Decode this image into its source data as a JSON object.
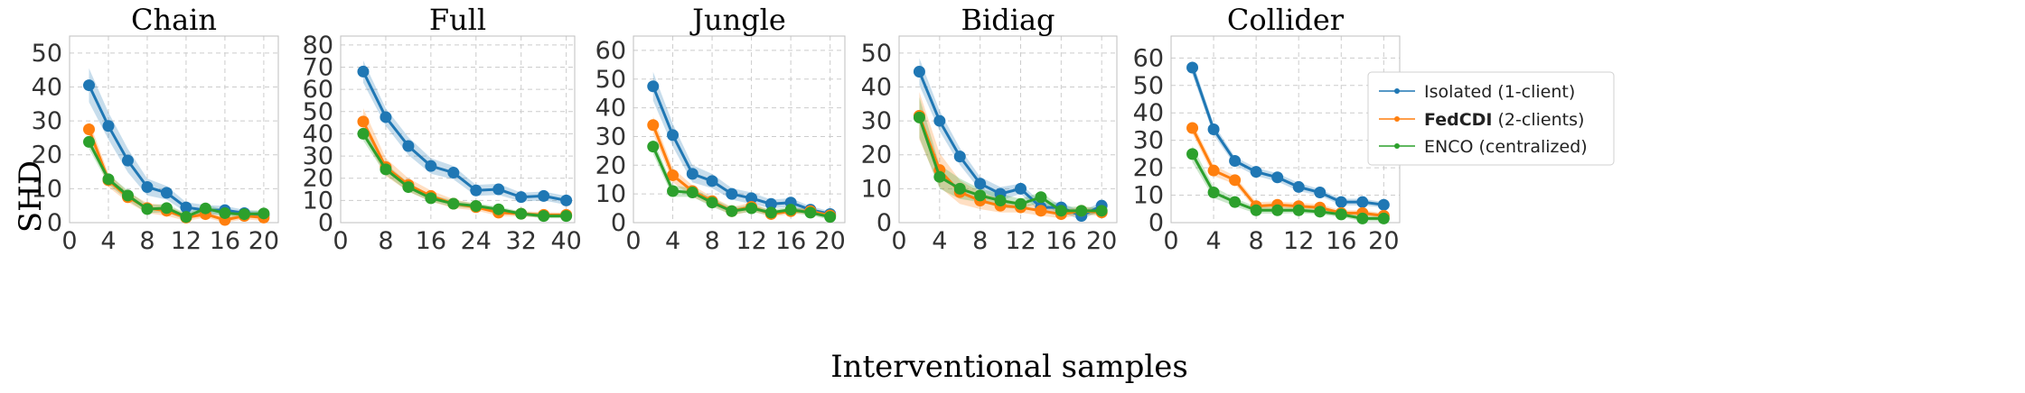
{
  "chart_data": {
    "type": "line",
    "shared_xlabel": "Interventional samples",
    "shared_ylabel": "SHD",
    "legend": {
      "placement": "top-right of Bidiag panel",
      "entries": [
        {
          "bold": "",
          "text": "Isolated (1-client)"
        },
        {
          "bold": "FedCDI",
          "text": " (2-clients)"
        },
        {
          "bold": "",
          "text": "ENCO (centralized)"
        }
      ]
    },
    "colors": {
      "isolated": "#1f77b4",
      "fedcdi": "#ff7f0e",
      "enco": "#2ca02c",
      "grid": "#cccccc",
      "spine": "#bfbfbf"
    },
    "panels": [
      {
        "title": "Chain",
        "xlim": [
          0,
          21.5
        ],
        "ylim": [
          0,
          55
        ],
        "xticks": [
          0,
          4,
          8,
          12,
          16,
          20
        ],
        "yticks": [
          0,
          10,
          20,
          30,
          40,
          50
        ],
        "x": [
          2,
          4,
          6,
          8,
          10,
          12,
          14,
          16,
          18,
          20
        ],
        "series": [
          {
            "key": "isolated",
            "name": "Isolated (1-client)",
            "values": [
              40.5,
              28.5,
              18.3,
              10.5,
              8.8,
              4.5,
              3.7,
              3.7,
              2.8,
              2.3
            ],
            "band": [
              5,
              4,
              3.5,
              2.5,
              2,
              1.5,
              1.5,
              1.2,
              1,
              1
            ]
          },
          {
            "key": "fedcdi",
            "name": "FedCDI (2-clients)",
            "values": [
              27.5,
              12.5,
              7.5,
              4.3,
              3.5,
              1.5,
              2.5,
              0.8,
              2.0,
              1.5
            ],
            "band": [
              2.5,
              2,
              1.5,
              1.5,
              1.5,
              1,
              1,
              0.8,
              1,
              1
            ]
          },
          {
            "key": "enco",
            "name": "ENCO (centralized)",
            "values": [
              23.8,
              12.8,
              8.0,
              4.0,
              4.3,
              1.7,
              4.2,
              2.8,
              2.5,
              2.7
            ],
            "band": [
              2,
              1.5,
              1.5,
              1.2,
              1.2,
              1,
              1,
              1,
              1,
              1
            ]
          }
        ]
      },
      {
        "title": "Full",
        "xlim": [
          0,
          41.5
        ],
        "ylim": [
          0,
          84
        ],
        "xticks": [
          0,
          8,
          16,
          24,
          32,
          40
        ],
        "yticks": [
          0,
          10,
          20,
          30,
          40,
          50,
          60,
          70,
          80
        ],
        "x": [
          4,
          8,
          12,
          16,
          20,
          24,
          28,
          32,
          36,
          40
        ],
        "series": [
          {
            "key": "isolated",
            "name": "Isolated (1-client)",
            "values": [
              68,
              47.5,
              34.5,
              25.5,
              22.5,
              14.5,
              15,
              11.5,
              12,
              10
            ],
            "band": [
              5,
              4,
              4,
              3.5,
              3,
              2.5,
              2.5,
              2,
              2,
              2
            ]
          },
          {
            "key": "fedcdi",
            "name": "FedCDI (2-clients)",
            "values": [
              45.5,
              25,
              17,
              12,
              8.5,
              7,
              4.5,
              4,
              3.5,
              3.5
            ],
            "band": [
              6,
              4,
              3,
              2.5,
              2,
              1.5,
              1.5,
              1.2,
              1.2,
              1
            ]
          },
          {
            "key": "enco",
            "name": "ENCO (centralized)",
            "values": [
              40,
              24,
              16,
              11,
              8.5,
              7.5,
              6,
              4,
              3,
              3
            ],
            "band": [
              3,
              2.5,
              2,
              1.5,
              1.5,
              1.2,
              1.2,
              1,
              1,
              1
            ]
          }
        ]
      },
      {
        "title": "Jungle",
        "xlim": [
          0,
          21.5
        ],
        "ylim": [
          0,
          65
        ],
        "xticks": [
          0,
          4,
          8,
          12,
          16,
          20
        ],
        "yticks": [
          0,
          10,
          20,
          30,
          40,
          50,
          60
        ],
        "x": [
          2,
          4,
          6,
          8,
          10,
          12,
          14,
          16,
          18,
          20
        ],
        "series": [
          {
            "key": "isolated",
            "name": "Isolated (1-client)",
            "values": [
              47.5,
              30.5,
              17,
              14.5,
              10,
              8.5,
              6.5,
              7,
              4.5,
              3
            ],
            "band": [
              5,
              4,
              3,
              2.5,
              2,
              2,
              1.5,
              1.5,
              1.2,
              1
            ]
          },
          {
            "key": "fedcdi",
            "name": "FedCDI (2-clients)",
            "values": [
              34,
              16.5,
              11,
              7.5,
              4,
              5.5,
              3,
              4,
              4,
              2.5
            ],
            "band": [
              3,
              2.5,
              2,
              1.5,
              1.5,
              1.5,
              1,
              1,
              1,
              1
            ]
          },
          {
            "key": "enco",
            "name": "ENCO (centralized)",
            "values": [
              26.5,
              11,
              10.5,
              7,
              4,
              5,
              3.5,
              4.5,
              3.5,
              2
            ],
            "band": [
              2.5,
              2,
              1.5,
              1.5,
              1.2,
              1.2,
              1,
              1,
              1,
              1
            ]
          }
        ]
      },
      {
        "title": "Bidiag",
        "xlim": [
          0,
          21.5
        ],
        "ylim": [
          0,
          55
        ],
        "xticks": [
          0,
          4,
          8,
          12,
          16,
          20
        ],
        "yticks": [
          0,
          10,
          20,
          30,
          40,
          50
        ],
        "x": [
          2,
          4,
          6,
          8,
          10,
          12,
          14,
          16,
          18,
          20
        ],
        "series": [
          {
            "key": "isolated",
            "name": "Isolated (1-client)",
            "values": [
              44.5,
              30,
              19.5,
              11.5,
              8.5,
              10,
              4.5,
              4.5,
              2,
              5
            ],
            "band": [
              4,
              3,
              2.5,
              2,
              2,
              1.5,
              1.5,
              1.5,
              1.2,
              1.2
            ]
          },
          {
            "key": "fedcdi",
            "name": "FedCDI (2-clients)",
            "values": [
              31.5,
              15.5,
              9,
              6.5,
              5,
              4.5,
              3.5,
              2.5,
              3.5,
              3
            ],
            "band": [
              7,
              5,
              3.5,
              2.5,
              2,
              1.5,
              1.5,
              1.2,
              1.2,
              1
            ]
          },
          {
            "key": "enco",
            "name": "ENCO (centralized)",
            "values": [
              31,
              13.5,
              10,
              8,
              6.5,
              5.5,
              7.5,
              3.5,
              3.5,
              3.5
            ],
            "band": [
              6,
              3.5,
              3,
              2,
              2,
              1.5,
              1.5,
              1.2,
              1.2,
              1
            ]
          }
        ]
      },
      {
        "title": "Collider",
        "xlim": [
          0,
          21.5
        ],
        "ylim": [
          0,
          68
        ],
        "xticks": [
          0,
          4,
          8,
          12,
          16,
          20
        ],
        "yticks": [
          0,
          10,
          20,
          30,
          40,
          50,
          60
        ],
        "x": [
          2,
          4,
          6,
          8,
          10,
          12,
          14,
          16,
          18,
          20
        ],
        "series": [
          {
            "key": "isolated",
            "name": "Isolated (1-client)",
            "values": [
              56.5,
              34,
              22.5,
              18.5,
              16.5,
              13,
              11,
              7.5,
              7.5,
              6.5
            ],
            "band": [
              2.5,
              2,
              1.5,
              1.5,
              1.5,
              1.5,
              1.2,
              1.2,
              1.2,
              1
            ]
          },
          {
            "key": "fedcdi",
            "name": "FedCDI (2-clients)",
            "values": [
              34.5,
              19,
              15.5,
              6,
              6.5,
              6,
              5.5,
              3.5,
              3.5,
              2.5
            ],
            "band": [
              2,
              2,
              1.5,
              1.5,
              1.2,
              1.2,
              1.2,
              1,
              1,
              1
            ]
          },
          {
            "key": "enco",
            "name": "ENCO (centralized)",
            "values": [
              25,
              11,
              7.5,
              4.5,
              4.5,
              4.5,
              4,
              3,
              1.5,
              1.5
            ],
            "band": [
              3,
              2,
              1.5,
              1.2,
              1.2,
              1,
              1,
              1,
              1,
              1
            ]
          }
        ]
      }
    ]
  }
}
